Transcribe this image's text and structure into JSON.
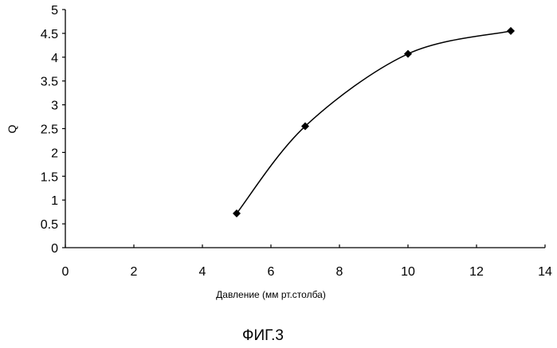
{
  "chart_data": {
    "type": "line",
    "x": [
      5,
      7,
      10,
      13
    ],
    "series": [
      {
        "values": [
          0.72,
          2.55,
          4.07,
          4.55
        ]
      }
    ],
    "xlabel": "Давление (мм рт.столба)",
    "ylabel": "Q",
    "xlim": [
      0,
      14
    ],
    "ylim": [
      0,
      5
    ],
    "x_ticks": [
      "0",
      "2",
      "4",
      "6",
      "8",
      "10",
      "12",
      "14"
    ],
    "y_ticks": [
      "0",
      "0.5",
      "1",
      "1.5",
      "2",
      "2.5",
      "3",
      "3.5",
      "4",
      "4.5",
      "5"
    ],
    "grid": false,
    "marker": "diamond",
    "smooth": true,
    "line_color": "#000000"
  },
  "caption": "ФИГ.3"
}
